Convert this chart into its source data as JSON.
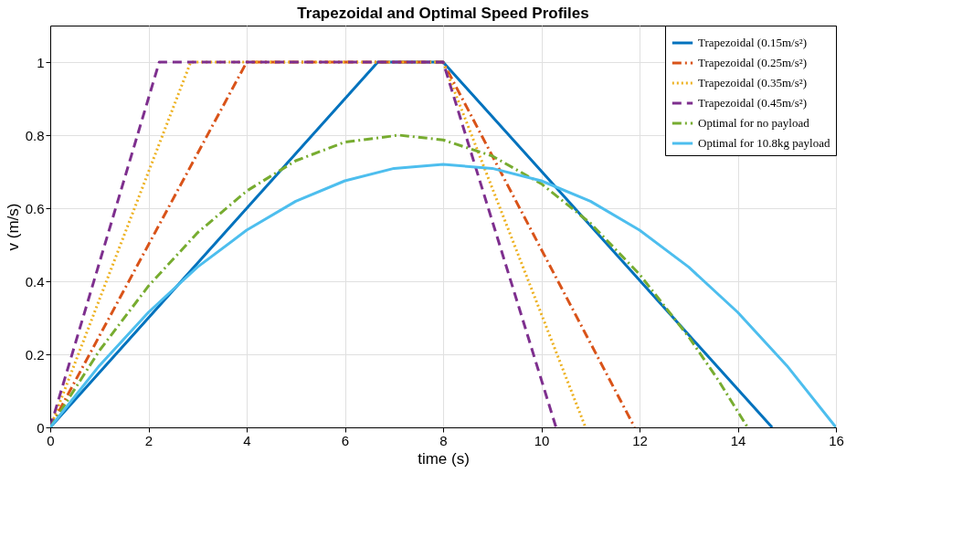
{
  "chart_data": {
    "type": "line",
    "title": "Trapezoidal and Optimal Speed Profiles",
    "xlabel": "time (s)",
    "ylabel": "v (m/s)",
    "xlim": [
      0,
      16
    ],
    "xticks": [
      0,
      2,
      4,
      6,
      8,
      10,
      12,
      14,
      16
    ],
    "ylim": [
      0,
      1.1
    ],
    "yticks": [
      0,
      0.2,
      0.4,
      0.6,
      0.8,
      1
    ],
    "grid": true,
    "legend": "top right",
    "marker": "none",
    "series": [
      {
        "name": "Trapezoidal (0.15m/s²)",
        "color": "#0072bd",
        "line_style": "solid",
        "x": [
          0,
          6.67,
          8.0,
          14.7
        ],
        "values": [
          0,
          1,
          1,
          0
        ]
      },
      {
        "name": "Trapezoidal (0.25m/s²)",
        "color": "#d95319",
        "line_style": "dashdot",
        "x": [
          0,
          4.0,
          8.0,
          11.9
        ],
        "values": [
          0,
          1,
          1,
          0
        ]
      },
      {
        "name": "Trapezoidal (0.35m/s²)",
        "color": "#edb120",
        "line_style": "dotted",
        "x": [
          0,
          2.86,
          8.0,
          10.9
        ],
        "values": [
          0,
          1,
          1,
          0
        ]
      },
      {
        "name": "Trapezoidal (0.45m/s²)",
        "color": "#7e2f8e",
        "line_style": "dashed",
        "x": [
          0,
          2.22,
          8.0,
          10.3
        ],
        "values": [
          0,
          1,
          1,
          0
        ]
      },
      {
        "name": "Optimal for no payload",
        "color": "#77ac30",
        "line_style": "dashdot",
        "x": [
          0,
          1,
          2,
          3,
          4,
          5,
          6,
          7.1,
          8,
          9,
          10,
          11,
          12,
          13,
          13.6,
          14.2
        ],
        "values": [
          0,
          0.21,
          0.387,
          0.533,
          0.647,
          0.73,
          0.781,
          0.8,
          0.787,
          0.743,
          0.667,
          0.559,
          0.419,
          0.248,
          0.13,
          0
        ]
      },
      {
        "name": "Optimal for 10.8kg payload",
        "color": "#4dbeee",
        "line_style": "solid",
        "x": [
          0,
          1,
          2,
          3,
          4,
          5,
          6,
          7,
          8,
          9,
          10,
          11,
          12,
          13,
          14,
          15,
          16
        ],
        "values": [
          0,
          0.169,
          0.315,
          0.439,
          0.54,
          0.619,
          0.675,
          0.709,
          0.72,
          0.709,
          0.675,
          0.619,
          0.54,
          0.439,
          0.315,
          0.169,
          0
        ]
      }
    ]
  }
}
